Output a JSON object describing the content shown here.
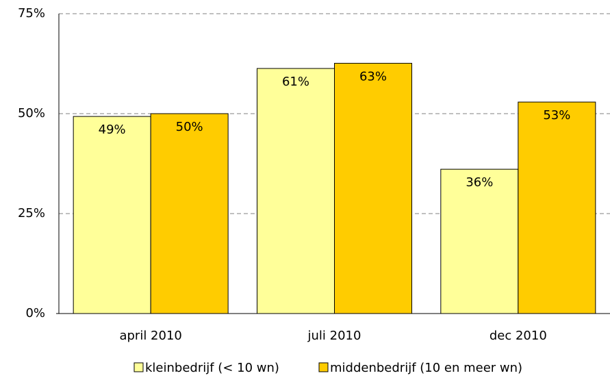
{
  "chart_data": {
    "type": "bar",
    "categories": [
      "april 2010",
      "juli 2010",
      "dec 2010"
    ],
    "series": [
      {
        "name": "kleinbedrijf (< 10 wn)",
        "color": "#ffff99",
        "values": [
          49.3,
          61.3,
          36.1
        ],
        "value_labels": [
          "49%",
          "61%",
          "36%"
        ]
      },
      {
        "name": "middenbedrijf (10 en meer wn)",
        "color": "#ffcc00",
        "values": [
          50,
          62.6,
          52.9
        ],
        "value_labels": [
          "50%",
          "63%",
          "53%"
        ]
      }
    ],
    "ylim": [
      0,
      75
    ],
    "yticks": [
      {
        "value": 0,
        "label": "0%"
      },
      {
        "value": 25,
        "label": "25%"
      },
      {
        "value": 50,
        "label": "50%"
      },
      {
        "value": 75,
        "label": "75%"
      }
    ],
    "grid": true,
    "legend": "bottom"
  }
}
